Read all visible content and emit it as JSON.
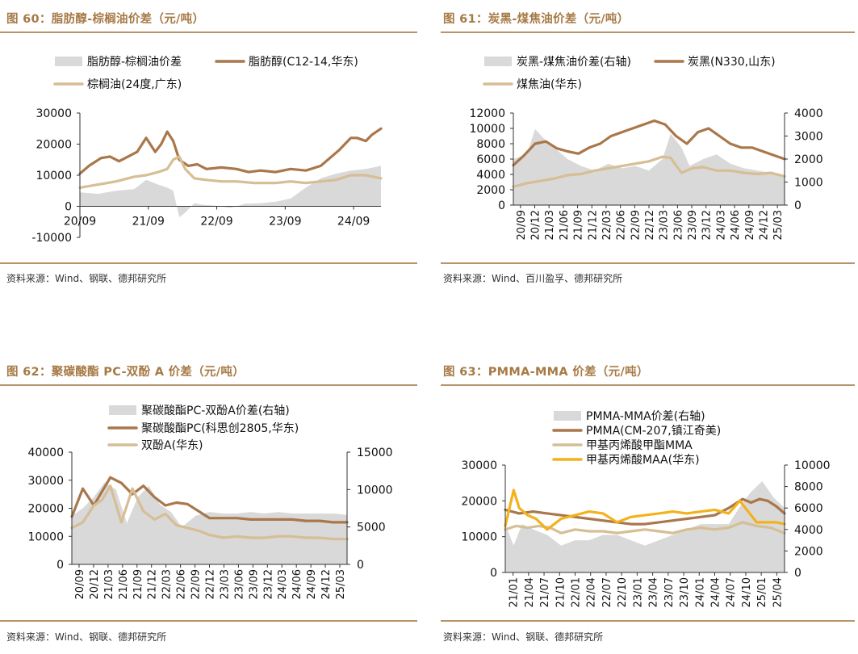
{
  "colors": {
    "title": "#a67a45",
    "rule": "#b89468",
    "area": "#d9d9d9",
    "brown": "#a9774a",
    "tan": "#d6be95",
    "orange": "#f3b21c",
    "axis": "#333333"
  },
  "chart_data": [
    {
      "type": "line",
      "title": "图 60：脂肪醇-棕榈油价差（元/吨）",
      "source": "资料来源：Wind、钢联、德邦研究所",
      "x_ticks": [
        "20/09",
        "21/09",
        "22/09",
        "23/09",
        "24/09"
      ],
      "y_left": {
        "min": -10000,
        "max": 30000,
        "ticks": [
          "30000",
          "20000",
          "10000",
          "0",
          "-10000"
        ]
      },
      "y_right": null,
      "series": [
        {
          "name": "脂肪醇-棕榈油价差",
          "kind": "area",
          "axis": "left",
          "color": "#d9d9d9",
          "x": [
            0,
            0.06,
            0.12,
            0.18,
            0.22,
            0.26,
            0.29,
            0.31,
            0.33,
            0.35,
            0.38,
            0.41,
            0.45,
            0.5,
            0.55,
            0.6,
            0.65,
            0.7,
            0.75,
            0.8,
            0.85,
            0.9,
            0.95,
            1
          ],
          "values": [
            4500,
            4000,
            5000,
            5500,
            8500,
            7000,
            6000,
            5000,
            -3500,
            -2000,
            1000,
            500,
            200,
            -500,
            800,
            1000,
            1500,
            2500,
            6000,
            9000,
            10500,
            11500,
            12000,
            13000
          ]
        },
        {
          "name": "脂肪醇(C12-14,华东)",
          "kind": "line",
          "axis": "left",
          "color": "#a9774a",
          "x": [
            0,
            0.03,
            0.07,
            0.1,
            0.13,
            0.16,
            0.19,
            0.22,
            0.25,
            0.27,
            0.29,
            0.31,
            0.33,
            0.36,
            0.39,
            0.42,
            0.47,
            0.52,
            0.56,
            0.6,
            0.65,
            0.7,
            0.75,
            0.8,
            0.83,
            0.86,
            0.9,
            0.92,
            0.95,
            0.97,
            1
          ],
          "values": [
            10500,
            13000,
            15500,
            16000,
            14500,
            16000,
            17500,
            22000,
            17500,
            20000,
            24000,
            21000,
            15000,
            13000,
            13500,
            12000,
            12500,
            12000,
            11000,
            11500,
            11000,
            12000,
            11500,
            13000,
            15500,
            18000,
            22000,
            22000,
            21000,
            23000,
            25000
          ]
        },
        {
          "name": "棕榈油(24度,广东)",
          "kind": "line",
          "axis": "left",
          "color": "#d6be95",
          "x": [
            0,
            0.06,
            0.12,
            0.18,
            0.22,
            0.26,
            0.29,
            0.31,
            0.33,
            0.35,
            0.38,
            0.42,
            0.47,
            0.52,
            0.58,
            0.65,
            0.7,
            0.75,
            0.8,
            0.85,
            0.9,
            0.95,
            1
          ],
          "values": [
            6000,
            7000,
            8000,
            9500,
            10000,
            11000,
            12000,
            15000,
            16000,
            12000,
            9000,
            8500,
            8000,
            8000,
            7500,
            7500,
            8000,
            7500,
            8000,
            8500,
            10000,
            10000,
            9000
          ]
        }
      ]
    },
    {
      "type": "line",
      "title": "图 61：炭黑-煤焦油价差（元/吨）",
      "source": "资料来源：Wind、百川盈孚、德邦研究所",
      "x_ticks": [
        "20/09",
        "20/12",
        "21/03",
        "21/06",
        "21/09",
        "21/12",
        "22/03",
        "22/06",
        "22/09",
        "22/12",
        "23/03",
        "23/06",
        "23/09",
        "23/12",
        "24/03",
        "24/06",
        "24/09",
        "24/12",
        "25/03"
      ],
      "y_left": {
        "min": 0,
        "max": 12000,
        "ticks": [
          "12000",
          "10000",
          "8000",
          "6000",
          "4000",
          "2000",
          "0"
        ]
      },
      "y_right": {
        "min": 0,
        "max": 4000,
        "ticks": [
          "4000",
          "3000",
          "2000",
          "1000",
          "0"
        ]
      },
      "series": [
        {
          "name": "炭黑-煤焦油价差(右轴)",
          "kind": "area",
          "axis": "right",
          "color": "#d9d9d9",
          "x": [
            0,
            0.05,
            0.08,
            0.12,
            0.15,
            0.2,
            0.25,
            0.3,
            0.35,
            0.4,
            0.45,
            0.5,
            0.55,
            0.58,
            0.62,
            0.65,
            0.7,
            0.75,
            0.8,
            0.85,
            0.9,
            0.95,
            1
          ],
          "values": [
            2000,
            2200,
            3300,
            2800,
            2500,
            2000,
            1700,
            1500,
            1800,
            1600,
            1700,
            1500,
            2000,
            3100,
            2500,
            1700,
            2000,
            2200,
            1800,
            1600,
            1500,
            1400,
            1300
          ]
        },
        {
          "name": "炭黑(N330,山东)",
          "kind": "line",
          "axis": "left",
          "color": "#a9774a",
          "x": [
            0,
            0.04,
            0.08,
            0.12,
            0.16,
            0.2,
            0.24,
            0.28,
            0.32,
            0.36,
            0.4,
            0.44,
            0.48,
            0.52,
            0.56,
            0.6,
            0.64,
            0.68,
            0.72,
            0.76,
            0.8,
            0.84,
            0.88,
            0.92,
            0.96,
            1
          ],
          "values": [
            5200,
            6500,
            8000,
            8300,
            7400,
            7000,
            6700,
            7500,
            8000,
            9000,
            9500,
            10000,
            10500,
            11000,
            10500,
            9000,
            8000,
            9500,
            10000,
            9000,
            8000,
            7500,
            7500,
            7000,
            6500,
            6000
          ]
        },
        {
          "name": "煤焦油(华东)",
          "kind": "line",
          "axis": "right",
          "color": "#d6be95",
          "x": [
            0,
            0.05,
            0.1,
            0.15,
            0.2,
            0.25,
            0.3,
            0.35,
            0.4,
            0.45,
            0.5,
            0.55,
            0.58,
            0.62,
            0.66,
            0.7,
            0.75,
            0.8,
            0.85,
            0.9,
            0.95,
            1
          ],
          "values": [
            800,
            950,
            1050,
            1150,
            1300,
            1350,
            1500,
            1600,
            1700,
            1800,
            1900,
            2100,
            2050,
            1400,
            1600,
            1650,
            1500,
            1500,
            1400,
            1350,
            1400,
            1250
          ]
        }
      ]
    },
    {
      "type": "line",
      "title": "图 62：聚碳酸酯 PC-双酚 A 价差（元/吨）",
      "source": "资料来源：Wind、钢联、德邦研究所",
      "x_ticks": [
        "20/09",
        "20/12",
        "21/03",
        "21/06",
        "21/09",
        "21/12",
        "22/03",
        "22/06",
        "22/09",
        "22/12",
        "23/03",
        "23/06",
        "23/09",
        "23/12",
        "24/03",
        "24/06",
        "24/09",
        "24/12",
        "25/03"
      ],
      "y_left": {
        "min": 0,
        "max": 40000,
        "ticks": [
          "40000",
          "30000",
          "20000",
          "10000",
          "0"
        ]
      },
      "y_right": {
        "min": 0,
        "max": 15000,
        "ticks": [
          "15000",
          "10000",
          "5000",
          "0"
        ]
      },
      "series": [
        {
          "name": "聚碳酸酯PC-双酚A价差(右轴)",
          "kind": "area",
          "axis": "right",
          "color": "#d9d9d9",
          "x": [
            0,
            0.04,
            0.08,
            0.12,
            0.16,
            0.2,
            0.24,
            0.28,
            0.32,
            0.36,
            0.4,
            0.45,
            0.5,
            0.55,
            0.6,
            0.65,
            0.7,
            0.75,
            0.8,
            0.85,
            0.9,
            0.95,
            1
          ],
          "values": [
            6500,
            7500,
            9000,
            11000,
            10000,
            5500,
            9000,
            10500,
            8000,
            7000,
            5000,
            6500,
            7000,
            6800,
            6800,
            7000,
            6800,
            7000,
            6800,
            6800,
            6800,
            6800,
            6600
          ]
        },
        {
          "name": "聚碳酸酯PC(科思创2805,华东)",
          "kind": "line",
          "axis": "left",
          "color": "#a9774a",
          "x": [
            0,
            0.04,
            0.08,
            0.11,
            0.14,
            0.18,
            0.22,
            0.26,
            0.3,
            0.34,
            0.38,
            0.42,
            0.46,
            0.5,
            0.55,
            0.6,
            0.65,
            0.7,
            0.75,
            0.8,
            0.85,
            0.9,
            0.95,
            1
          ],
          "values": [
            17000,
            27000,
            21000,
            26000,
            31000,
            29000,
            25000,
            28000,
            24000,
            21000,
            22000,
            21500,
            19000,
            16500,
            16500,
            16500,
            16000,
            16000,
            16000,
            16000,
            15500,
            15500,
            15000,
            15000
          ]
        },
        {
          "name": "双酚A(华东)",
          "kind": "line",
          "axis": "left",
          "color": "#d6be95",
          "x": [
            0,
            0.04,
            0.08,
            0.11,
            0.14,
            0.18,
            0.22,
            0.26,
            0.3,
            0.34,
            0.38,
            0.42,
            0.46,
            0.5,
            0.55,
            0.6,
            0.65,
            0.7,
            0.75,
            0.8,
            0.85,
            0.9,
            0.95,
            1
          ],
          "values": [
            13000,
            15000,
            21000,
            23000,
            28000,
            15000,
            27000,
            19000,
            16000,
            18000,
            14000,
            13000,
            12000,
            10500,
            9500,
            10000,
            9500,
            9500,
            10000,
            10000,
            9500,
            9500,
            9000,
            9000
          ]
        }
      ]
    },
    {
      "type": "line",
      "title": "图 63：PMMA-MMA 价差（元/吨）",
      "source": "资料来源：Wind、钢联、德邦研究所",
      "x_ticks": [
        "21/01",
        "21/04",
        "21/07",
        "21/10",
        "22/01",
        "22/04",
        "22/07",
        "22/10",
        "23/01",
        "23/04",
        "23/07",
        "23/10",
        "24/01",
        "24/04",
        "24/07",
        "24/10",
        "25/01",
        "25/04"
      ],
      "y_left": {
        "min": 0,
        "max": 30000,
        "ticks": [
          "30000",
          "20000",
          "10000",
          "0"
        ]
      },
      "y_right": {
        "min": 0,
        "max": 10000,
        "ticks": [
          "10000",
          "8000",
          "6000",
          "4000",
          "2000",
          "0"
        ]
      },
      "series": [
        {
          "name": "PMMA-MMA价差(右轴)",
          "kind": "area",
          "axis": "right",
          "color": "#d9d9d9",
          "x": [
            0,
            0.03,
            0.06,
            0.1,
            0.15,
            0.2,
            0.25,
            0.3,
            0.35,
            0.4,
            0.45,
            0.5,
            0.55,
            0.6,
            0.65,
            0.7,
            0.75,
            0.8,
            0.85,
            0.88,
            0.92,
            0.96,
            1
          ],
          "values": [
            4500,
            2500,
            4500,
            4000,
            3500,
            2500,
            3000,
            3000,
            3500,
            3500,
            3000,
            2500,
            3000,
            3500,
            4000,
            4500,
            4500,
            4500,
            6500,
            7500,
            8500,
            7000,
            6000
          ]
        },
        {
          "name": "PMMA(CM-207,镇江奇美)",
          "kind": "line",
          "axis": "left",
          "color": "#a9774a",
          "x": [
            0,
            0.05,
            0.1,
            0.15,
            0.2,
            0.25,
            0.3,
            0.35,
            0.4,
            0.45,
            0.5,
            0.55,
            0.6,
            0.65,
            0.7,
            0.75,
            0.8,
            0.85,
            0.88,
            0.91,
            0.94,
            0.97,
            1
          ],
          "values": [
            17500,
            16500,
            17000,
            16500,
            16000,
            15500,
            15000,
            14500,
            14000,
            13500,
            13500,
            14000,
            14500,
            15000,
            15500,
            16000,
            18000,
            20500,
            19500,
            20500,
            20000,
            18500,
            16500
          ]
        },
        {
          "name": "甲基丙烯酸甲酯MMA",
          "kind": "line",
          "axis": "left",
          "color": "#d6be95",
          "x": [
            0,
            0.04,
            0.08,
            0.12,
            0.16,
            0.2,
            0.25,
            0.3,
            0.35,
            0.4,
            0.45,
            0.5,
            0.55,
            0.6,
            0.65,
            0.7,
            0.75,
            0.8,
            0.85,
            0.9,
            0.95,
            1
          ],
          "values": [
            12000,
            13000,
            12500,
            13000,
            12500,
            11000,
            12000,
            11500,
            11500,
            11000,
            11500,
            12000,
            11500,
            11000,
            12000,
            12500,
            12000,
            12500,
            14000,
            13000,
            12500,
            11000
          ]
        },
        {
          "name": "甲基丙烯酸MAA(华东)",
          "kind": "line",
          "axis": "left",
          "color": "#f3b21c",
          "x": [
            0,
            0.03,
            0.05,
            0.08,
            0.11,
            0.15,
            0.2,
            0.25,
            0.3,
            0.35,
            0.4,
            0.45,
            0.5,
            0.55,
            0.6,
            0.65,
            0.7,
            0.75,
            0.8,
            0.84,
            0.87,
            0.9,
            0.94,
            0.97,
            1
          ],
          "values": [
            13000,
            23000,
            18000,
            16000,
            15000,
            12000,
            15000,
            16000,
            17000,
            16500,
            14000,
            15500,
            16000,
            16500,
            17000,
            16500,
            17000,
            17500,
            16500,
            20000,
            17000,
            14000,
            14000,
            14000,
            13500
          ]
        }
      ]
    }
  ]
}
